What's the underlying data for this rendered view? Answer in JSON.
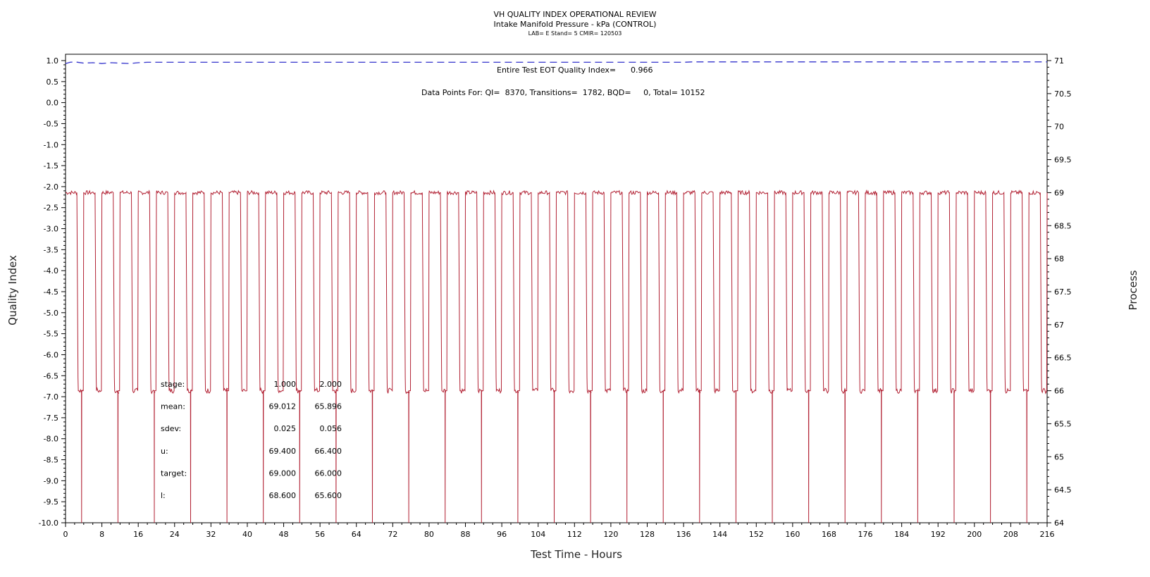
{
  "header": {
    "title": "VH QUALITY INDEX OPERATIONAL REVIEW",
    "subtitle": "Intake Manifold Pressure - kPa (CONTROL)",
    "meta": "LAB= E Stand= 5 CMIR= 120503"
  },
  "annotations": {
    "eot_label": "Entire Test EOT Quality Index=",
    "eot_value": "0.966",
    "counts_text": "Data Points For: QI=  8370, Transitions=  1782, BQD=     0, Total= 10152"
  },
  "stats_table": {
    "rows": [
      {
        "label": "stage:",
        "v1": "1.000",
        "v2": "2.000"
      },
      {
        "label": "mean:",
        "v1": "69.012",
        "v2": "65.896"
      },
      {
        "label": "sdev:",
        "v1": "0.025",
        "v2": "0.056"
      },
      {
        "label": "u:",
        "v1": "69.400",
        "v2": "66.400"
      },
      {
        "label": "target:",
        "v1": "69.000",
        "v2": "66.000"
      },
      {
        "label": "l:",
        "v1": "68.600",
        "v2": "65.600"
      }
    ]
  },
  "chart_data": {
    "type": "line",
    "title": "VH QUALITY INDEX OPERATIONAL REVIEW",
    "subtitle": "Intake Manifold Pressure - kPa (CONTROL)",
    "xlabel": "Test Time - Hours",
    "ylabel_left": "Quality Index",
    "ylabel_right": "Process",
    "xlim": [
      0,
      216
    ],
    "ylim_left": [
      -10,
      1
    ],
    "ylim_right": [
      64,
      71
    ],
    "x_ticks": [
      0,
      8,
      16,
      24,
      32,
      40,
      48,
      56,
      64,
      72,
      80,
      88,
      96,
      104,
      112,
      120,
      128,
      136,
      144,
      152,
      160,
      168,
      176,
      184,
      192,
      200,
      208,
      216
    ],
    "y_ticks_left": [
      "1.0",
      "0.5",
      "0.0",
      "-0.5",
      "-1.0",
      "-1.5",
      "-2.0",
      "-2.5",
      "-3.0",
      "-3.5",
      "-4.0",
      "-4.5",
      "-5.0",
      "-5.5",
      "-6.0",
      "-6.5",
      "-7.0",
      "-7.5",
      "-8.0",
      "-8.5",
      "-9.0",
      "-9.5",
      "-10.0"
    ],
    "y_ticks_right": [
      "71",
      "70.5",
      "70",
      "69.5",
      "69",
      "68.5",
      "68",
      "67.5",
      "67",
      "66.5",
      "66",
      "65.5",
      "65",
      "64.5",
      "64"
    ],
    "series": [
      {
        "axis": "left",
        "color": "#3333cc",
        "style": "dashed",
        "x": [
          0,
          1,
          2,
          4,
          6,
          8,
          10,
          12,
          14,
          16,
          18,
          20,
          40,
          60,
          80,
          100,
          120,
          136,
          138,
          140,
          160,
          180,
          200,
          216
        ],
        "y": [
          0.93,
          0.96,
          0.97,
          0.94,
          0.95,
          0.93,
          0.95,
          0.94,
          0.93,
          0.95,
          0.96,
          0.96,
          0.96,
          0.96,
          0.96,
          0.96,
          0.96,
          0.96,
          0.97,
          0.97,
          0.97,
          0.97,
          0.97,
          0.97
        ]
      },
      {
        "axis": "right",
        "color": "#b22234",
        "style": "solid",
        "cycle_hours": 4,
        "high_phase_hours": 2.5,
        "high_level": 69.0,
        "low_level": 66.0,
        "dip_level": 64.0
      }
    ]
  },
  "colors": {
    "process_line": "#b22234",
    "qi_line": "#3333cc",
    "axis": "#000000"
  }
}
